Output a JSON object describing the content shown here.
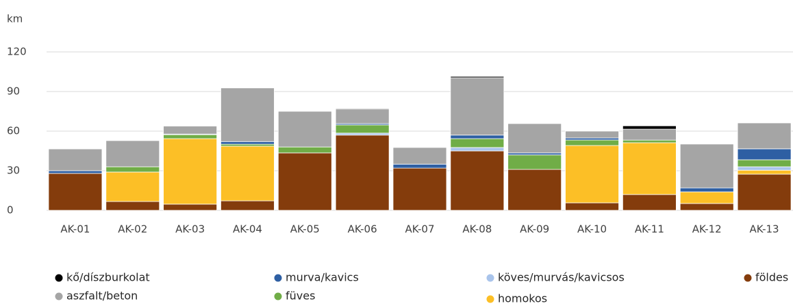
{
  "chart_data": {
    "type": "stacked_bar",
    "y_label": "km",
    "categories": [
      "AK-01",
      "AK-02",
      "AK-03",
      "AK-04",
      "AK-05",
      "AK-06",
      "AK-07",
      "AK-08",
      "AK-09",
      "AK-10",
      "AK-11",
      "AK-12",
      "AK-13"
    ],
    "series": [
      {
        "name": "földes",
        "color": "#843c0c",
        "values": [
          28,
          6.7,
          4.7,
          7.2,
          43.5,
          57,
          32,
          45,
          31,
          5.7,
          12,
          5.2,
          27.4
        ]
      },
      {
        "name": "homokos",
        "color": "#fcbf26",
        "values": [
          0,
          22.3,
          49.6,
          41.4,
          0,
          0,
          0,
          0,
          0,
          43.4,
          39.2,
          8.8,
          3
        ]
      },
      {
        "name": "köves/murvás/kavicsos",
        "color": "#a9c4eb",
        "values": [
          0,
          0,
          0,
          0,
          0,
          1.5,
          0,
          2.6,
          0,
          0,
          0,
          0,
          2.6
        ]
      },
      {
        "name": "füves",
        "color": "#70ad47",
        "values": [
          0,
          4,
          3,
          1.5,
          4.5,
          6.2,
          0,
          6.7,
          11,
          4.2,
          2,
          0,
          5.3
        ]
      },
      {
        "name": "murva/kavics",
        "color": "#2e5fa3",
        "values": [
          2,
          0,
          0.5,
          2,
          0,
          1,
          3,
          2.7,
          1.5,
          1.5,
          0,
          3,
          8.3
        ]
      },
      {
        "name": "aszfalt/beton",
        "color": "#a5a5a5",
        "values": [
          16.5,
          19.8,
          6,
          40.6,
          27,
          11,
          12.6,
          43.4,
          22.2,
          5.2,
          8.3,
          33.2,
          19.6
        ]
      },
      {
        "name": "kő/díszburkolat",
        "color": "#000000",
        "values": [
          0,
          0,
          0,
          0,
          0,
          0.5,
          0,
          1,
          0,
          0,
          2.5,
          0,
          0
        ]
      }
    ],
    "ylim": [
      0,
      120
    ],
    "yticks": [
      0,
      30,
      60,
      90,
      120
    ],
    "grid": true
  }
}
